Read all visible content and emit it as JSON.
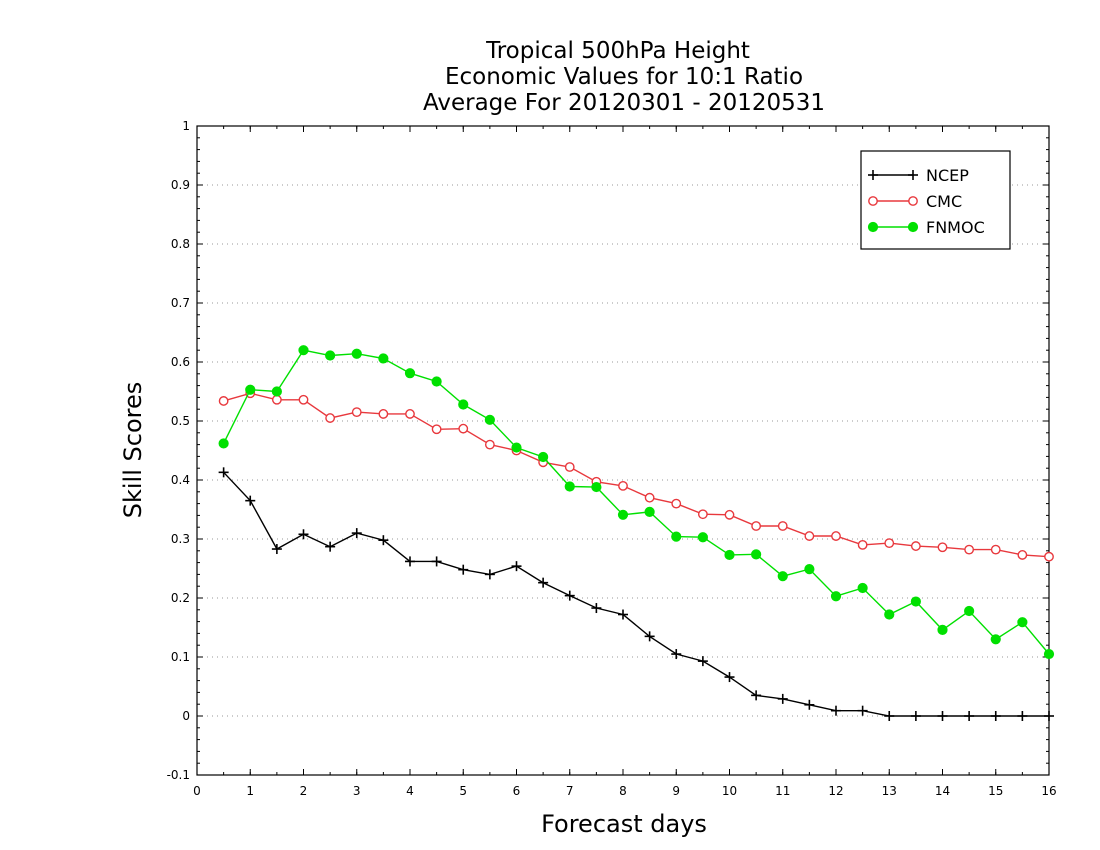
{
  "chart_data": {
    "type": "line",
    "title_lines": [
      "Tropical 500hPa Height",
      "Economic Values for 10:1 Ratio",
      "Average For 20120301 - 20120531"
    ],
    "xlabel": "Forecast days",
    "ylabel": "Skill Scores",
    "xlim": [
      0,
      16
    ],
    "ylim": [
      -0.1,
      1
    ],
    "x_ticks": [
      "0",
      "1",
      "2",
      "3",
      "4",
      "5",
      "6",
      "7",
      "8",
      "9",
      "10",
      "11",
      "12",
      "13",
      "14",
      "15",
      "16"
    ],
    "y_ticks": [
      "-0.1",
      "0",
      "0.1",
      "0.2",
      "0.3",
      "0.4",
      "0.5",
      "0.6",
      "0.7",
      "0.8",
      "0.9",
      "1"
    ],
    "grid": "dotted horizontal",
    "legend_position": "top-right",
    "x": [
      0.5,
      1,
      1.5,
      2,
      2.5,
      3,
      3.5,
      4,
      4.5,
      5,
      5.5,
      6,
      6.5,
      7,
      7.5,
      8,
      8.5,
      9,
      9.5,
      10,
      10.5,
      11,
      11.5,
      12,
      12.5,
      13,
      13.5,
      14,
      14.5,
      15,
      15.5,
      16
    ],
    "series": [
      {
        "name": "NCEP",
        "color": "#000000",
        "marker": "plus",
        "values": [
          0.413,
          0.365,
          0.283,
          0.308,
          0.287,
          0.31,
          0.298,
          0.262,
          0.262,
          0.248,
          0.24,
          0.254,
          0.226,
          0.204,
          0.183,
          0.172,
          0.135,
          0.105,
          0.093,
          0.066,
          0.035,
          0.029,
          0.019,
          0.009,
          0.009,
          0.0,
          0.0,
          0.0,
          0.0,
          0.0,
          0.0,
          0.0
        ]
      },
      {
        "name": "CMC",
        "color": "#e8383d",
        "marker": "open-circle",
        "values": [
          0.534,
          0.547,
          0.536,
          0.536,
          0.505,
          0.515,
          0.512,
          0.512,
          0.486,
          0.487,
          0.46,
          0.45,
          0.43,
          0.422,
          0.397,
          0.39,
          0.37,
          0.36,
          0.342,
          0.341,
          0.322,
          0.322,
          0.305,
          0.305,
          0.29,
          0.293,
          0.288,
          0.286,
          0.282,
          0.282,
          0.273,
          0.27
        ]
      },
      {
        "name": "FNMOC",
        "color": "#00e000",
        "marker": "filled-circle",
        "values": [
          0.462,
          0.553,
          0.55,
          0.62,
          0.611,
          0.614,
          0.606,
          0.581,
          0.567,
          0.528,
          0.502,
          0.455,
          0.439,
          0.389,
          0.388,
          0.341,
          0.346,
          0.304,
          0.303,
          0.273,
          0.274,
          0.237,
          0.249,
          0.203,
          0.217,
          0.172,
          0.194,
          0.146,
          0.178,
          0.13,
          0.159,
          0.105
        ]
      }
    ]
  }
}
